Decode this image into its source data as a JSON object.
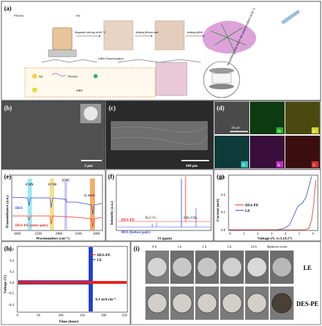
{
  "panels": {
    "a": {
      "label": "(a)",
      "annotations": [
        "PEGDA",
        "SN",
        "Magnetic stirring at 60 °C",
        "Adding lithium salt",
        "Adding AIBN",
        "Assembling cells and in-situ polymerization at 60 °C",
        "AIBN Polymerization"
      ],
      "legend": [
        "SN",
        "PEGDA",
        "AIBN"
      ]
    },
    "b": {
      "label": "(b)",
      "scalebar": "5 μm"
    },
    "c": {
      "label": "(c)",
      "scalebar": "100 μm"
    },
    "d": {
      "label": "(d)",
      "scalebar": "30 μm",
      "maps": [
        "O",
        "F",
        "N",
        "S",
        "C"
      ]
    },
    "e": {
      "label": "(e)",
      "ylabel": "Transmittance (a.u.)",
      "xlabel": "Wavenumber (cm⁻¹)",
      "peaks": [
        "C≡N",
        "C=O",
        "C=C",
        "C-O-C"
      ],
      "series": [
        "DES",
        "DES-PE (after poly)"
      ],
      "xticks": [
        "3000",
        "2500",
        "2000",
        "1500",
        "1000"
      ]
    },
    "f": {
      "label": "(f)",
      "ylabel": "Intensity (a.u.)",
      "xlabel": "f1 (ppm)",
      "annot": [
        "H₂C=C-",
        "-CH₂-CH₂-"
      ],
      "series": [
        "DES-PE",
        "DES (before poly)"
      ]
    },
    "g": {
      "label": "(g)",
      "ylabel": "Current (mA)",
      "xlabel": "Voltage (V, vs Li/Li⁺)",
      "series": [
        "DES-PE",
        "LE"
      ],
      "xticks": [
        "0",
        "1",
        "2",
        "3",
        "4",
        "5",
        "6"
      ],
      "yticks": [
        "0.0",
        "0.2",
        "0.4",
        "0.6"
      ]
    },
    "h": {
      "label": "(h)",
      "ylabel": "Voltage (V)",
      "xlabel": "Time (hour)",
      "series": [
        "DES-PE",
        "LE"
      ],
      "xticks": [
        "0",
        "50",
        "100",
        "150",
        "200",
        "250"
      ],
      "yticks": [
        "-0.4",
        "-0.2",
        "0.0",
        "0.2",
        "0.4",
        "0.6"
      ],
      "note": "0.1 mA cm⁻²"
    },
    "i": {
      "label": "(i)",
      "times": [
        "0 h",
        "1 h",
        "2 h",
        "3 h",
        "24 h",
        "Remove cover"
      ],
      "rows": [
        "LE",
        "DES-PE"
      ]
    }
  },
  "colors": {
    "red": "#e8211d",
    "blue": "#1f3fd0"
  }
}
